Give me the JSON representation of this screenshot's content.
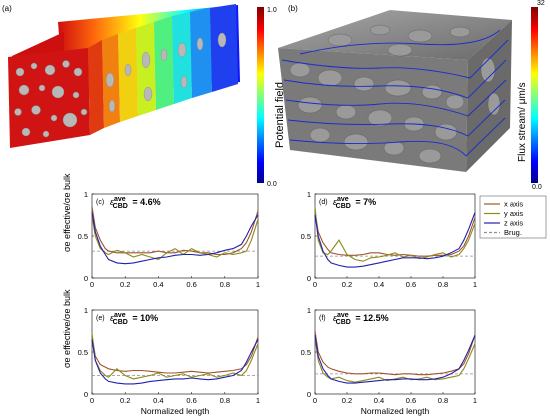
{
  "panel_a": {
    "label": "(a)",
    "colorbar_title": "Potential field",
    "colorbar_max": "1.0",
    "colorbar_min": "0.0"
  },
  "panel_b": {
    "label": "(b)",
    "colorbar_title": "Flux stream/ μm/s",
    "colorbar_max": "32",
    "colorbar_min": "0.0"
  },
  "legend": {
    "entries": [
      {
        "label": "x axis",
        "color": "#a0522d"
      },
      {
        "label": "y axis",
        "color": "#8b8b1a"
      },
      {
        "label": "z axis",
        "color": "#2020b0"
      },
      {
        "label": "Brug.",
        "color": "#909090"
      }
    ]
  },
  "y_axis_label": "σe effective/σe bulk",
  "chart_data": [
    {
      "type": "line",
      "label": "(c)",
      "epsilon_text": "ε",
      "epsilon_sup": "ave",
      "epsilon_sub": "CBD",
      "value_text": "= 4.6%",
      "xlabel": "",
      "xlim": [
        0,
        1
      ],
      "ylim": [
        0,
        1
      ],
      "xticks": [
        "0",
        "0.2",
        "0.4",
        "0.6",
        "0.8",
        "1"
      ],
      "yticks": [
        "0",
        "0.5",
        "1"
      ],
      "brug": 0.32,
      "x": [
        0,
        0.02,
        0.05,
        0.08,
        0.1,
        0.15,
        0.2,
        0.25,
        0.3,
        0.35,
        0.4,
        0.45,
        0.5,
        0.55,
        0.6,
        0.65,
        0.7,
        0.75,
        0.8,
        0.85,
        0.9,
        0.93,
        0.96,
        1.0
      ],
      "series": [
        {
          "name": "x axis",
          "values": [
            0.85,
            0.6,
            0.45,
            0.35,
            0.32,
            0.3,
            0.3,
            0.3,
            0.3,
            0.3,
            0.32,
            0.3,
            0.3,
            0.33,
            0.32,
            0.3,
            0.3,
            0.28,
            0.28,
            0.3,
            0.35,
            0.42,
            0.55,
            0.8
          ]
        },
        {
          "name": "y axis",
          "values": [
            0.75,
            0.5,
            0.35,
            0.3,
            0.28,
            0.33,
            0.3,
            0.25,
            0.28,
            0.25,
            0.22,
            0.3,
            0.35,
            0.28,
            0.35,
            0.3,
            0.28,
            0.25,
            0.3,
            0.28,
            0.3,
            0.32,
            0.45,
            0.7
          ]
        },
        {
          "name": "z axis",
          "values": [
            0.78,
            0.55,
            0.38,
            0.28,
            0.22,
            0.18,
            0.17,
            0.18,
            0.2,
            0.22,
            0.24,
            0.25,
            0.27,
            0.28,
            0.28,
            0.27,
            0.28,
            0.3,
            0.33,
            0.35,
            0.4,
            0.5,
            0.62,
            0.75
          ]
        }
      ]
    },
    {
      "type": "line",
      "label": "(d)",
      "epsilon_text": "ε",
      "epsilon_sup": "ave",
      "epsilon_sub": "CBD",
      "value_text": "= 7%",
      "xlabel": "",
      "xlim": [
        0,
        1
      ],
      "ylim": [
        0,
        1
      ],
      "xticks": [
        "0",
        "0.2",
        "0.4",
        "0.6",
        "0.8",
        "1"
      ],
      "yticks": [
        "0",
        "0.5",
        "1"
      ],
      "brug": 0.26,
      "x": [
        0,
        0.02,
        0.05,
        0.08,
        0.1,
        0.15,
        0.2,
        0.25,
        0.3,
        0.35,
        0.4,
        0.45,
        0.5,
        0.55,
        0.6,
        0.65,
        0.7,
        0.75,
        0.8,
        0.85,
        0.9,
        0.93,
        0.96,
        1.0
      ],
      "series": [
        {
          "name": "x axis",
          "values": [
            0.8,
            0.55,
            0.42,
            0.34,
            0.3,
            0.28,
            0.27,
            0.27,
            0.28,
            0.3,
            0.3,
            0.28,
            0.27,
            0.28,
            0.27,
            0.26,
            0.26,
            0.27,
            0.27,
            0.28,
            0.32,
            0.38,
            0.5,
            0.72
          ]
        },
        {
          "name": "y axis",
          "values": [
            0.85,
            0.45,
            0.3,
            0.28,
            0.32,
            0.45,
            0.28,
            0.22,
            0.2,
            0.24,
            0.25,
            0.27,
            0.3,
            0.25,
            0.27,
            0.23,
            0.25,
            0.28,
            0.3,
            0.25,
            0.28,
            0.35,
            0.45,
            0.65
          ]
        },
        {
          "name": "z axis",
          "values": [
            0.75,
            0.5,
            0.32,
            0.22,
            0.18,
            0.15,
            0.13,
            0.13,
            0.14,
            0.16,
            0.18,
            0.2,
            0.22,
            0.24,
            0.24,
            0.24,
            0.23,
            0.24,
            0.26,
            0.3,
            0.35,
            0.45,
            0.58,
            0.78
          ]
        }
      ]
    },
    {
      "type": "line",
      "label": "(e)",
      "epsilon_text": "ε",
      "epsilon_sup": "ave",
      "epsilon_sub": "CBD",
      "value_text": "= 10%",
      "xlabel": "Normalized length",
      "xlim": [
        0,
        1
      ],
      "ylim": [
        0,
        1
      ],
      "xticks": [
        "0",
        "0.2",
        "0.4",
        "0.6",
        "0.8",
        "1"
      ],
      "yticks": [
        "0",
        "0.5",
        "1"
      ],
      "brug": 0.22,
      "x": [
        0,
        0.02,
        0.05,
        0.08,
        0.1,
        0.15,
        0.2,
        0.25,
        0.3,
        0.35,
        0.4,
        0.45,
        0.5,
        0.55,
        0.6,
        0.65,
        0.7,
        0.75,
        0.8,
        0.85,
        0.9,
        0.93,
        0.96,
        1.0
      ],
      "series": [
        {
          "name": "x axis",
          "values": [
            0.7,
            0.45,
            0.35,
            0.32,
            0.3,
            0.28,
            0.27,
            0.28,
            0.28,
            0.27,
            0.26,
            0.25,
            0.25,
            0.26,
            0.27,
            0.26,
            0.25,
            0.26,
            0.27,
            0.28,
            0.3,
            0.35,
            0.45,
            0.68
          ]
        },
        {
          "name": "y axis",
          "values": [
            0.72,
            0.4,
            0.28,
            0.22,
            0.2,
            0.3,
            0.22,
            0.18,
            0.2,
            0.22,
            0.25,
            0.2,
            0.22,
            0.24,
            0.2,
            0.22,
            0.24,
            0.2,
            0.22,
            0.25,
            0.22,
            0.28,
            0.4,
            0.6
          ]
        },
        {
          "name": "z axis",
          "values": [
            0.65,
            0.4,
            0.25,
            0.18,
            0.15,
            0.13,
            0.12,
            0.12,
            0.13,
            0.15,
            0.16,
            0.17,
            0.18,
            0.18,
            0.19,
            0.18,
            0.17,
            0.18,
            0.2,
            0.22,
            0.28,
            0.38,
            0.5,
            0.65
          ]
        }
      ]
    },
    {
      "type": "line",
      "label": "(f)",
      "epsilon_text": "ε",
      "epsilon_sup": "ave",
      "epsilon_sub": "CBD",
      "value_text": "= 12.5%",
      "xlabel": "Normalized length",
      "xlim": [
        0,
        1
      ],
      "ylim": [
        0,
        1
      ],
      "xticks": [
        "0",
        "0.2",
        "0.4",
        "0.6",
        "0.8",
        "1"
      ],
      "yticks": [
        "0",
        "0.5",
        "1"
      ],
      "brug": 0.24,
      "x": [
        0,
        0.02,
        0.05,
        0.08,
        0.1,
        0.15,
        0.2,
        0.25,
        0.3,
        0.35,
        0.4,
        0.45,
        0.5,
        0.55,
        0.6,
        0.65,
        0.7,
        0.75,
        0.8,
        0.85,
        0.9,
        0.93,
        0.96,
        1.0
      ],
      "series": [
        {
          "name": "x axis",
          "values": [
            0.75,
            0.5,
            0.38,
            0.32,
            0.3,
            0.27,
            0.25,
            0.24,
            0.24,
            0.25,
            0.25,
            0.24,
            0.23,
            0.24,
            0.24,
            0.23,
            0.23,
            0.24,
            0.25,
            0.27,
            0.3,
            0.36,
            0.48,
            0.7
          ]
        },
        {
          "name": "y axis",
          "values": [
            0.68,
            0.4,
            0.25,
            0.2,
            0.18,
            0.2,
            0.16,
            0.14,
            0.16,
            0.18,
            0.2,
            0.16,
            0.18,
            0.2,
            0.17,
            0.18,
            0.2,
            0.17,
            0.18,
            0.2,
            0.22,
            0.3,
            0.42,
            0.6
          ]
        },
        {
          "name": "z axis",
          "values": [
            0.7,
            0.45,
            0.3,
            0.22,
            0.18,
            0.15,
            0.13,
            0.13,
            0.14,
            0.15,
            0.16,
            0.17,
            0.17,
            0.18,
            0.18,
            0.17,
            0.17,
            0.18,
            0.2,
            0.24,
            0.3,
            0.4,
            0.52,
            0.7
          ]
        }
      ]
    }
  ]
}
